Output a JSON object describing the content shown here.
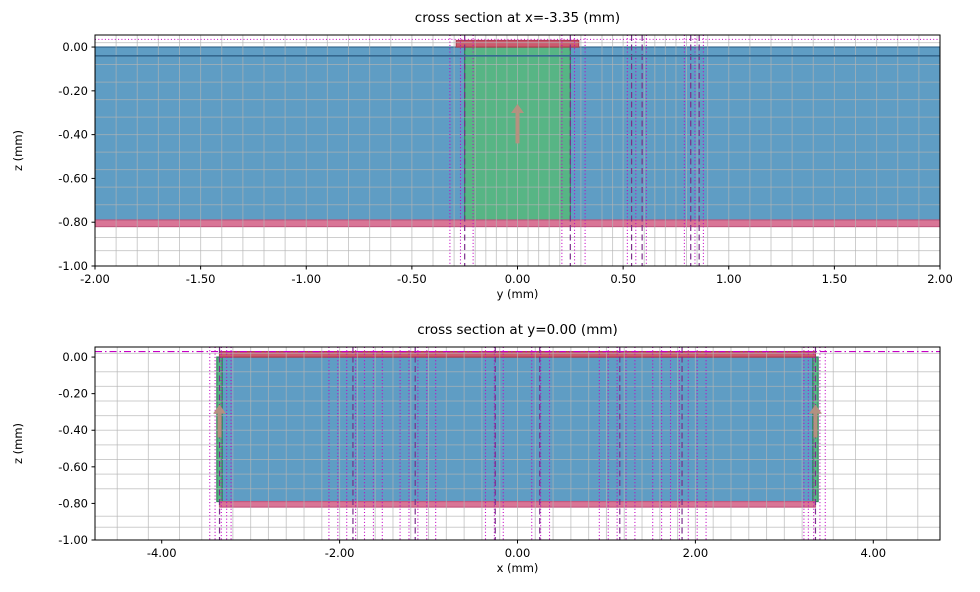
{
  "figure": {
    "background": "#ffffff"
  },
  "colors": {
    "substrate": "#5f9dc4",
    "substrate_edge": "#35688f",
    "port": "#57b585",
    "port_edge": "#2f8659",
    "trace": "#cc5b6e",
    "trace_edge": "#b04052",
    "ground": "#d97596",
    "ground_edge": "#c25a80",
    "mesh": "#b3b3b3",
    "mesh_dotted": "#c400c4",
    "mesh_dashed": "#7b2d8b",
    "arrow": "#b8907f",
    "axis": "#000000",
    "text": "#000000"
  },
  "chart_data": [
    {
      "type": "cross-section",
      "title": "cross section at x=-3.35 (mm)",
      "xlabel": "y (mm)",
      "ylabel": "z (mm)",
      "xlim": [
        -2.0,
        2.0
      ],
      "ylim": [
        -1.0,
        0.055
      ],
      "xticks": [
        -2.0,
        -1.5,
        -1.0,
        -0.5,
        0.0,
        0.5,
        1.0,
        1.5,
        2.0
      ],
      "xtick_labels": [
        "-2.00",
        "-1.50",
        "-1.00",
        "-0.50",
        "0.00",
        "0.50",
        "1.00",
        "1.50",
        "2.00"
      ],
      "yticks": [
        0.0,
        -0.2,
        -0.4,
        -0.6,
        -0.8,
        -1.0
      ],
      "ytick_labels": [
        "0.00",
        "-0.20",
        "-0.40",
        "-0.60",
        "-0.80",
        "-1.00"
      ],
      "regions": [
        {
          "name": "substrate",
          "x": [
            -2.0,
            2.0
          ],
          "z": [
            -0.79,
            0.0
          ],
          "fill": "substrate",
          "edge": "substrate_edge"
        },
        {
          "name": "port",
          "x": [
            -0.25,
            0.25
          ],
          "z": [
            -0.79,
            0.0
          ],
          "fill": "port",
          "edge": "port_edge"
        },
        {
          "name": "trace",
          "x": [
            -0.29,
            0.29
          ],
          "z": [
            0.0,
            0.03
          ],
          "fill": "trace",
          "edge": "trace_edge"
        },
        {
          "name": "ground-plane",
          "x": [
            -2.0,
            2.0
          ],
          "z": [
            -0.82,
            -0.79
          ],
          "fill": "ground",
          "edge": "ground_edge"
        }
      ],
      "mesh": {
        "gray_v": [
          -1.9,
          -1.8,
          -1.7,
          -1.6,
          -1.5,
          -1.4,
          -1.3,
          -1.2,
          -1.1,
          -1.0,
          -0.9,
          -0.8,
          -0.7,
          -0.6,
          -0.5,
          -0.4,
          -0.3,
          -0.2,
          -0.15,
          -0.1,
          -0.05,
          0.0,
          0.05,
          0.1,
          0.15,
          0.2,
          0.3,
          0.4,
          0.45,
          0.5,
          0.6,
          0.65,
          0.7,
          0.75,
          0.8,
          0.85,
          0.9,
          1.0,
          1.1,
          1.2,
          1.3,
          1.4,
          1.5,
          1.6,
          1.7,
          1.8,
          1.9
        ],
        "gray_h": [
          0.02,
          -0.08,
          -0.16,
          -0.24,
          -0.32,
          -0.4,
          -0.48,
          -0.56,
          -0.64,
          -0.72,
          -0.87,
          -0.93
        ],
        "magenta_v_dotted": [
          -0.32,
          -0.27,
          -0.21,
          0.21,
          0.27,
          0.32,
          0.52,
          0.56,
          0.61,
          0.79,
          0.84,
          0.88
        ],
        "purple_v_dashed": [
          -0.25,
          0.25,
          0.54,
          0.59,
          0.82,
          0.86
        ],
        "magenta_h_dotted": [
          0.035,
          0.055
        ],
        "magenta_h_dashdot": []
      },
      "hlines": [
        {
          "z": -0.04,
          "color": "substrate_edge",
          "w": 1.6
        }
      ],
      "arrows": [
        {
          "x": 0.0,
          "z0": -0.44,
          "z1": -0.26
        }
      ]
    },
    {
      "type": "cross-section",
      "title": "cross section at y=0.00 (mm)",
      "xlabel": "x (mm)",
      "ylabel": "z (mm)",
      "xlim": [
        -4.75,
        4.75
      ],
      "ylim": [
        -1.0,
        0.055
      ],
      "xticks": [
        -4.0,
        -2.0,
        0.0,
        2.0,
        4.0
      ],
      "xtick_labels": [
        "-4.00",
        "-2.00",
        "0.00",
        "2.00",
        "4.00"
      ],
      "yticks": [
        0.0,
        -0.2,
        -0.4,
        -0.6,
        -0.8,
        -1.0
      ],
      "ytick_labels": [
        "0.00",
        "-0.20",
        "-0.40",
        "-0.60",
        "-0.80",
        "-1.00"
      ],
      "regions": [
        {
          "name": "substrate",
          "x": [
            -3.35,
            3.35
          ],
          "z": [
            -0.79,
            0.0
          ],
          "fill": "substrate",
          "edge": "substrate_edge"
        },
        {
          "name": "port-left",
          "x": [
            -3.38,
            -3.32
          ],
          "z": [
            -0.79,
            0.0
          ],
          "fill": "port",
          "edge": "port_edge"
        },
        {
          "name": "port-right",
          "x": [
            3.32,
            3.38
          ],
          "z": [
            -0.79,
            0.0
          ],
          "fill": "port",
          "edge": "port_edge"
        },
        {
          "name": "trace",
          "x": [
            -3.35,
            3.35
          ],
          "z": [
            0.0,
            0.03
          ],
          "fill": "trace",
          "edge": "trace_edge"
        },
        {
          "name": "ground-plane",
          "x": [
            -3.35,
            3.35
          ],
          "z": [
            -0.82,
            -0.79
          ],
          "fill": "ground",
          "edge": "ground_edge"
        }
      ],
      "mesh": {
        "gray_v": [
          -4.5,
          -4.15,
          -3.8,
          -3.55,
          -3.2,
          -3.0,
          -2.8,
          -2.6,
          -2.4,
          -2.2,
          -2.0,
          -1.8,
          -1.6,
          -1.4,
          -1.2,
          -1.0,
          -0.8,
          -0.6,
          -0.4,
          -0.2,
          0.0,
          0.2,
          0.4,
          0.6,
          0.8,
          1.0,
          1.2,
          1.4,
          1.6,
          1.8,
          2.0,
          2.2,
          2.4,
          2.6,
          2.8,
          3.0,
          3.2,
          3.55,
          3.8,
          4.15,
          4.5
        ],
        "gray_h": [
          0.02,
          -0.08,
          -0.16,
          -0.24,
          -0.32,
          -0.4,
          -0.48,
          -0.56,
          -0.64,
          -0.72,
          -0.87,
          -0.93
        ],
        "magenta_v_dotted": [
          -3.46,
          -3.4,
          -3.33,
          -3.27,
          -3.22,
          -2.12,
          -2.02,
          -1.92,
          -1.82,
          -1.72,
          -1.62,
          -1.52,
          -1.32,
          -1.22,
          -1.12,
          -1.02,
          -0.92,
          -0.36,
          -0.26,
          -0.16,
          0.16,
          0.26,
          0.36,
          0.92,
          1.02,
          1.12,
          1.22,
          1.32,
          1.52,
          1.62,
          1.72,
          1.82,
          1.92,
          2.02,
          2.12,
          3.22,
          3.27,
          3.33,
          3.4,
          3.46
        ],
        "purple_v_dashed": [
          -3.35,
          -1.85,
          -1.15,
          -0.25,
          0.25,
          1.15,
          1.85,
          3.35
        ],
        "magenta_h_dotted": [
          0.055
        ],
        "magenta_h_dashdot": [
          0.03
        ]
      },
      "hlines": [],
      "arrows": [
        {
          "x": -3.35,
          "z0": -0.44,
          "z1": -0.26
        },
        {
          "x": 3.35,
          "z0": -0.44,
          "z1": -0.26
        }
      ]
    }
  ]
}
